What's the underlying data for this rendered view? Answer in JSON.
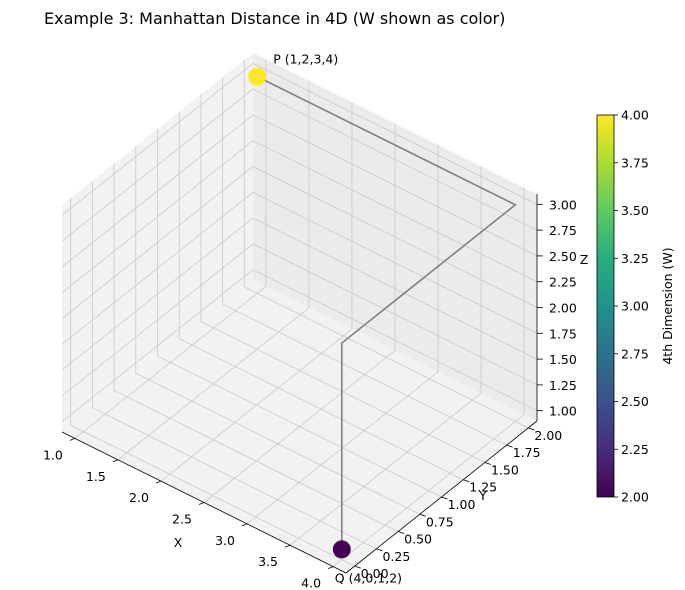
{
  "chart_data": {
    "type": "scatter",
    "projection": "3d",
    "title": "Example 3: Manhattan Distance in 4D (W shown as color)",
    "xlabel": "X",
    "ylabel": "Y",
    "zlabel": "Z",
    "xlim": [
      0.85,
      4.15
    ],
    "ylim": [
      -0.1,
      2.1
    ],
    "zlim": [
      0.9,
      3.1
    ],
    "xticks": [
      "1.0",
      "1.5",
      "2.0",
      "2.5",
      "3.0",
      "3.5",
      "4.0"
    ],
    "yticks": [
      "0.00",
      "0.25",
      "0.50",
      "0.75",
      "1.00",
      "1.25",
      "1.50",
      "1.75",
      "2.00"
    ],
    "zticks": [
      "1.00",
      "1.25",
      "1.50",
      "1.75",
      "2.00",
      "2.25",
      "2.50",
      "2.75",
      "3.00"
    ],
    "grid": true,
    "colormap": "viridis",
    "points": [
      {
        "label": "P (1,2,3,4)",
        "x": 1,
        "y": 2,
        "z": 3,
        "w": 4
      },
      {
        "label": "Q (4,0,1,2)",
        "x": 4,
        "y": 0,
        "z": 1,
        "w": 2
      }
    ],
    "path": {
      "x": [
        1,
        4,
        4,
        4
      ],
      "y": [
        2,
        2,
        0,
        0
      ],
      "z": [
        3,
        3,
        3,
        1
      ],
      "color": "#808080"
    },
    "colorbar": {
      "label": "4th Dimension (W)",
      "range": [
        2.0,
        4.0
      ],
      "ticks": [
        "2.00",
        "2.25",
        "2.50",
        "2.75",
        "3.00",
        "3.25",
        "3.50",
        "3.75",
        "4.00"
      ]
    }
  }
}
